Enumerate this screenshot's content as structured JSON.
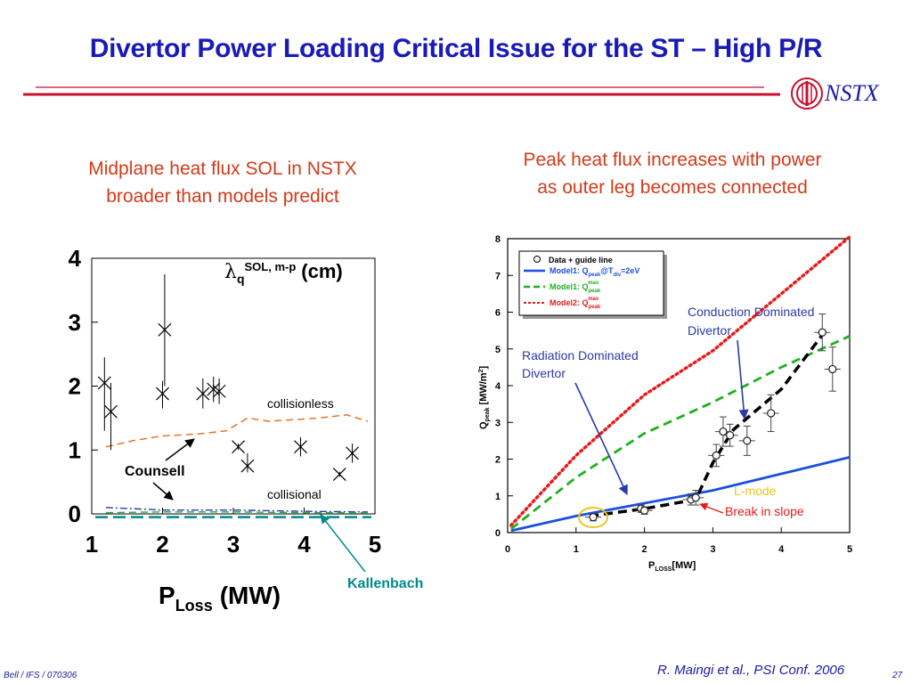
{
  "slide": {
    "title": "Divertor Power Loading Critical Issue for the ST – High P/R",
    "logo_text": "NSTX",
    "left_subtitle_line1": "Midplane heat flux SOL in NSTX",
    "left_subtitle_line2": "broader than models predict",
    "right_subtitle_line1": "Peak heat flux increases with power",
    "right_subtitle_line2": "as outer leg becomes connected",
    "footer_left": "Bell / IFS / 070306",
    "footer_citation": "R. Maingi et al., PSI Conf. 2006",
    "page_number": "27",
    "colors": {
      "title": "#1a1ab8",
      "subtitle": "#d23a1a",
      "rule": "#c8102e",
      "kallenbach": "#008a8a"
    }
  },
  "chart_data": [
    {
      "type": "scatter",
      "title": "λq SOL, m-p (cm)",
      "title_symbol": "λ",
      "title_sub": "q",
      "title_sup": "SOL, m-p",
      "title_unit": "(cm)",
      "xlabel_main": "P",
      "xlabel_sub": "Loss",
      "xlabel_unit": "(MW)",
      "xlim": [
        1,
        5
      ],
      "ylim": [
        0,
        4
      ],
      "xticks": [
        1,
        2,
        3,
        4,
        5
      ],
      "yticks": [
        0,
        1,
        2,
        3,
        4
      ],
      "points": [
        {
          "x": 1.18,
          "y": 2.05,
          "ylo": 1.3,
          "yhi": 2.45
        },
        {
          "x": 1.27,
          "y": 1.6,
          "ylo": 1.0,
          "yhi": 2.05
        },
        {
          "x": 2.0,
          "y": 1.88,
          "ylo": 1.65,
          "yhi": 2.08
        },
        {
          "x": 2.03,
          "y": 2.88,
          "ylo": 2.0,
          "yhi": 3.75
        },
        {
          "x": 2.57,
          "y": 1.88,
          "ylo": 1.65,
          "yhi": 2.12
        },
        {
          "x": 2.72,
          "y": 1.95,
          "ylo": 1.75,
          "yhi": 2.15
        },
        {
          "x": 2.8,
          "y": 1.92,
          "ylo": 1.72,
          "yhi": 2.12
        },
        {
          "x": 3.07,
          "y": 1.05,
          "ylo": 1.0,
          "yhi": 1.1
        },
        {
          "x": 3.2,
          "y": 0.75,
          "ylo": 0.65,
          "yhi": 0.95
        },
        {
          "x": 3.95,
          "y": 1.05,
          "ylo": 0.9,
          "yhi": 1.2
        },
        {
          "x": 4.5,
          "y": 0.62,
          "ylo": 0.58,
          "yhi": 0.66
        },
        {
          "x": 4.68,
          "y": 0.95,
          "ylo": 0.8,
          "yhi": 1.1
        }
      ],
      "series": [
        {
          "name": "collisionless",
          "style": "dashed",
          "color": "#e86a1a",
          "x": [
            1.2,
            1.6,
            2.0,
            2.5,
            2.9,
            3.2,
            3.5,
            4.2,
            4.6,
            4.9
          ],
          "y": [
            1.05,
            1.15,
            1.22,
            1.25,
            1.3,
            1.5,
            1.45,
            1.5,
            1.55,
            1.45
          ]
        },
        {
          "name": "Counsell",
          "style": "dashdot",
          "color": "#2a3aaa",
          "x": [
            1.2,
            2.0,
            3.0,
            4.0,
            4.9
          ],
          "y": [
            0.1,
            0.06,
            0.06,
            0.04,
            0.03
          ]
        },
        {
          "name": "collisional",
          "style": "dashed",
          "color": "#22aa44",
          "x": [
            1.2,
            2.0,
            3.0,
            4.0,
            4.9
          ],
          "y": [
            0.02,
            0.03,
            0.03,
            0.02,
            0.02
          ]
        },
        {
          "name": "Kallenbach",
          "style": "longdash",
          "color": "#008a8a",
          "x": [
            1.05,
            2.0,
            3.0,
            4.0,
            4.95
          ],
          "y": [
            -0.05,
            -0.05,
            -0.05,
            -0.05,
            -0.05
          ]
        }
      ],
      "annotations": {
        "collisionless": "collisionless",
        "counsell": "Counsell",
        "collisional": "collisional",
        "kallenbach": "Kallenbach"
      }
    },
    {
      "type": "line",
      "xlabel_main": "P",
      "xlabel_sub": "LOSS",
      "xlabel_unit": "[MW]",
      "ylabel_main": "Q",
      "ylabel_sub": "peak",
      "ylabel_unit": "[MW/m",
      "ylabel_sup": "2",
      "ylabel_close": "]",
      "xlim": [
        0,
        5
      ],
      "ylim": [
        0,
        8
      ],
      "xticks": [
        0,
        1,
        2,
        3,
        4,
        5
      ],
      "yticks": [
        0,
        1,
        2,
        3,
        4,
        5,
        6,
        7,
        8
      ],
      "legend": {
        "data_label": "Data + guide line",
        "model1_label": "Model1: Q",
        "model1_sub": "peak",
        "model1_at": "@T",
        "model1_at_sub": "div",
        "model1_tail": "=2eV",
        "model1max_label": "Model1: Q",
        "model1max_sub": "peak",
        "model1max_sup": "max",
        "model2_label": "Model2: Q",
        "model2_sub": "peak",
        "model2_sup": "max"
      },
      "series": [
        {
          "name": "Model1 Tdiv=2eV",
          "color": "#1a4fe0",
          "style": "solid",
          "x": [
            0.05,
            1.0,
            2.0,
            3.0,
            4.0,
            5.0
          ],
          "y": [
            0.05,
            0.45,
            0.8,
            1.15,
            1.6,
            2.05
          ]
        },
        {
          "name": "Model1 max",
          "color": "#1fb01f",
          "style": "dashed",
          "x": [
            0.05,
            1.0,
            2.0,
            3.0,
            4.0,
            5.0
          ],
          "y": [
            0.1,
            1.5,
            2.7,
            3.55,
            4.5,
            5.35
          ]
        },
        {
          "name": "Model2 max",
          "color": "#e81a1a",
          "style": "dotted",
          "x": [
            0.05,
            1.0,
            2.0,
            3.0,
            4.0,
            5.0
          ],
          "y": [
            0.2,
            2.1,
            3.75,
            4.95,
            6.5,
            8.05
          ]
        },
        {
          "name": "guide line",
          "color": "#000000",
          "style": "dashed",
          "x": [
            1.2,
            2.0,
            2.75,
            3.0,
            3.3,
            4.0,
            4.65
          ],
          "y": [
            0.45,
            0.65,
            0.9,
            1.9,
            2.8,
            3.9,
            5.5
          ]
        }
      ],
      "points": [
        {
          "x": 1.25,
          "y": 0.42,
          "yerr": 0.1
        },
        {
          "x": 1.95,
          "y": 0.65,
          "yerr": 0.1
        },
        {
          "x": 2.0,
          "y": 0.6,
          "yerr": 0.1
        },
        {
          "x": 2.68,
          "y": 0.9,
          "yerr": 0.15
        },
        {
          "x": 2.75,
          "y": 0.95,
          "yerr": 0.2
        },
        {
          "x": 3.05,
          "y": 2.1,
          "yerr": 0.3
        },
        {
          "x": 3.15,
          "y": 2.75,
          "yerr": 0.4
        },
        {
          "x": 3.25,
          "y": 2.65,
          "yerr": 0.3
        },
        {
          "x": 3.5,
          "y": 2.5,
          "yerr": 0.4
        },
        {
          "x": 3.85,
          "y": 3.25,
          "yerr": 0.5
        },
        {
          "x": 4.6,
          "y": 5.45,
          "yerr": 0.5
        },
        {
          "x": 4.75,
          "y": 4.45,
          "yerr": 0.6
        }
      ],
      "annotations": {
        "conduction_line1": "Conduction Dominated",
        "conduction_line2": "Divertor",
        "radiation_line1": "Radiation Dominated",
        "radiation_line2": "Divertor",
        "lmode": "L-mode",
        "break": "Break in slope"
      }
    }
  ]
}
